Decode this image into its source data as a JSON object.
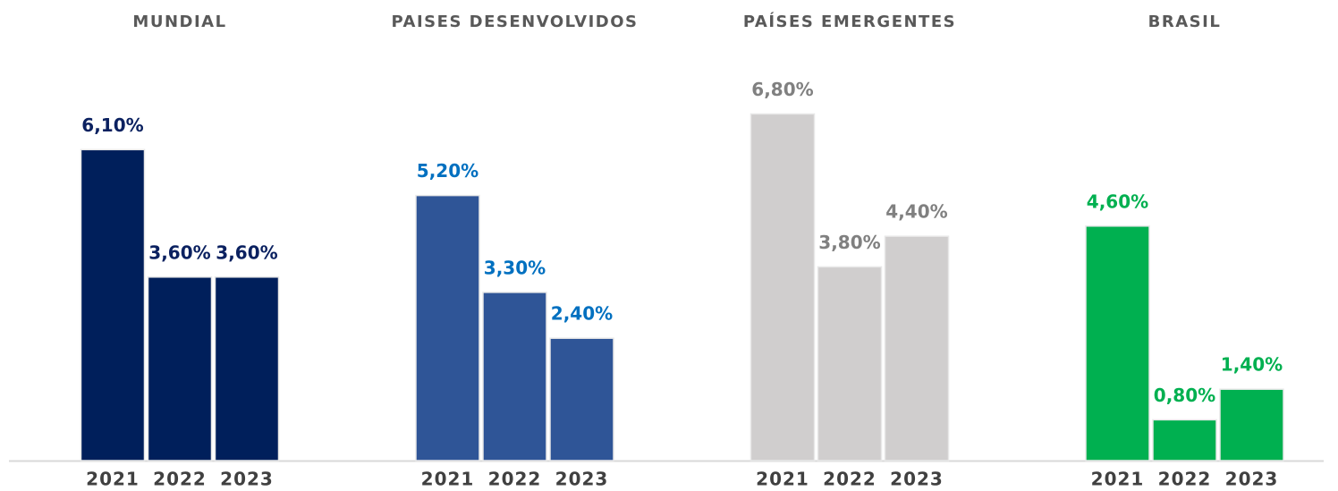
{
  "chart_data": [
    {
      "type": "bar",
      "title": "MUNDIAL",
      "categories": [
        "2021",
        "2022",
        "2023"
      ],
      "values": [
        6.1,
        3.6,
        3.6
      ],
      "value_labels": [
        "6,10%",
        "3,60%",
        "3,60%"
      ],
      "color": "#001f5b",
      "label_color": "#0b2160",
      "ylim": [
        0,
        8
      ]
    },
    {
      "type": "bar",
      "title": "PAISES DESENVOLVIDOS",
      "categories": [
        "2021",
        "2022",
        "2023"
      ],
      "values": [
        5.2,
        3.3,
        2.4
      ],
      "value_labels": [
        "5,20%",
        "3,30%",
        "2,40%"
      ],
      "color": "#2f5597",
      "label_color": "#0070c0",
      "ylim": [
        0,
        8
      ]
    },
    {
      "type": "bar",
      "title": "PAÍSES EMERGENTES",
      "categories": [
        "2021",
        "2022",
        "2023"
      ],
      "values": [
        6.8,
        3.8,
        4.4
      ],
      "value_labels": [
        "6,80%",
        "3,80%",
        "4,40%"
      ],
      "color": "#d0cece",
      "label_color": "#808080",
      "ylim": [
        0,
        8
      ]
    },
    {
      "type": "bar",
      "title": "BRASIL",
      "categories": [
        "2021",
        "2022",
        "2023"
      ],
      "values": [
        4.6,
        0.8,
        1.4
      ],
      "value_labels": [
        "4,60%",
        "0,80%",
        "1,40%"
      ],
      "color": "#00b050",
      "label_color": "#00b050",
      "ylim": [
        0,
        8
      ]
    }
  ]
}
